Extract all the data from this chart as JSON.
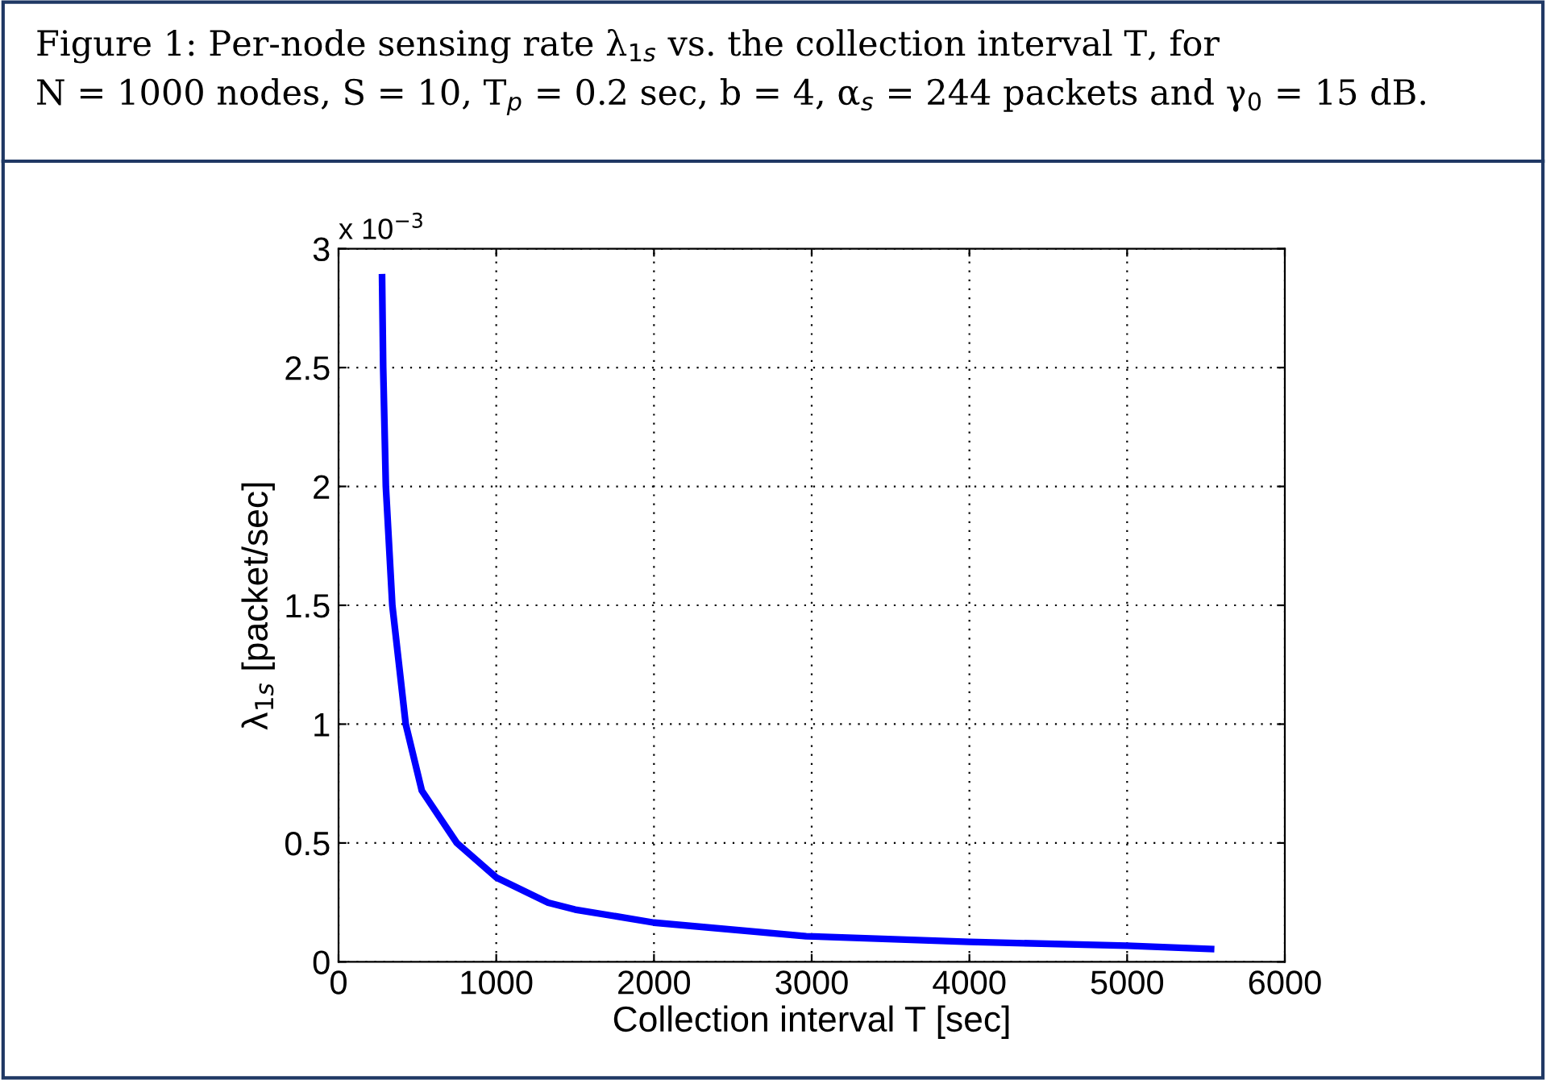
{
  "chart_data": {
    "type": "line",
    "title": "Figure 1: Per-node sensing rate λ$_{1s}$ vs. the collection interval T, for\nN = 1000 nodes, S = 10, T$_{p}$ = 0.2 sec, b = 4, α$_{s}$ = 244 packets and γ$_{0}$ = 15 dB.",
    "xlabel": "Collection interval T [sec]",
    "ylabel": "λ$_{1s}$ [packet/sec]",
    "annotations": [
      "x 10$^{−3}$"
    ],
    "series": [
      {
        "color": "#0000ff",
        "x": [
          276,
          283,
          300,
          341,
          426,
          528,
          750,
          1000,
          1329,
          1500,
          2000,
          2965,
          4000,
          5000,
          5532
        ],
        "values": [
          2.88,
          2.5,
          2.0,
          1.5,
          1.0,
          0.72,
          0.5,
          0.355,
          0.249,
          0.22,
          0.165,
          0.108,
          0.084,
          0.068,
          0.054
        ]
      }
    ],
    "xlim": [
      0,
      6000
    ],
    "xticks": [
      0,
      1000,
      2000,
      3000,
      4000,
      5000,
      6000
    ],
    "ylim": [
      0,
      3
    ],
    "yticks": [
      0,
      0.5,
      1,
      1.5,
      2,
      2.5,
      3
    ],
    "grid": true,
    "marker": "none",
    "line_style": "solid"
  }
}
